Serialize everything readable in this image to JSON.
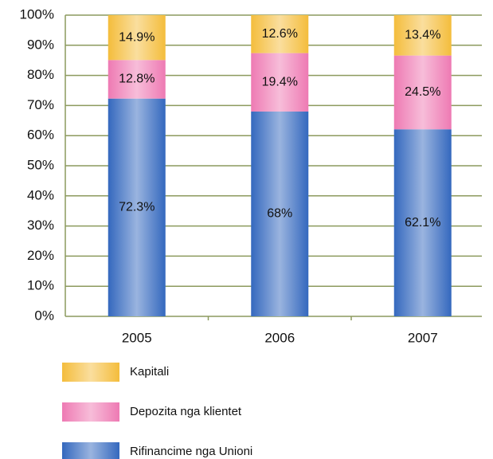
{
  "chart_data": {
    "type": "stacked_bar",
    "categories": [
      "2005",
      "2006",
      "2007"
    ],
    "series": [
      {
        "name": "Rifinancime nga Unioni",
        "color": "#3468be",
        "values": [
          72.3,
          68,
          62.1
        ],
        "value_labels": [
          "72.3%",
          "68%",
          "62.1%"
        ]
      },
      {
        "name": "Depozita nga klientet",
        "color": "#ee7ab3",
        "values": [
          12.8,
          19.4,
          24.5
        ],
        "value_labels": [
          "12.8%",
          "19.4%",
          "24.5%"
        ]
      },
      {
        "name": "Kapitali",
        "color": "#f4bd3c",
        "values": [
          14.9,
          12.6,
          13.4
        ],
        "value_labels": [
          "14.9%",
          "12.6%",
          "13.4%"
        ]
      }
    ],
    "ylim": [
      0,
      100
    ],
    "yticks": [
      {
        "value": 0,
        "label": "0%"
      },
      {
        "value": 10,
        "label": "10%"
      },
      {
        "value": 20,
        "label": "20%"
      },
      {
        "value": 30,
        "label": "30%"
      },
      {
        "value": 40,
        "label": "40%"
      },
      {
        "value": 50,
        "label": "50%"
      },
      {
        "value": 60,
        "label": "60%"
      },
      {
        "value": 70,
        "label": "70%"
      },
      {
        "value": 80,
        "label": "80%"
      },
      {
        "value": 90,
        "label": "90%"
      },
      {
        "value": 100,
        "label": "100%"
      }
    ],
    "grid": true,
    "legend": "bottom"
  }
}
